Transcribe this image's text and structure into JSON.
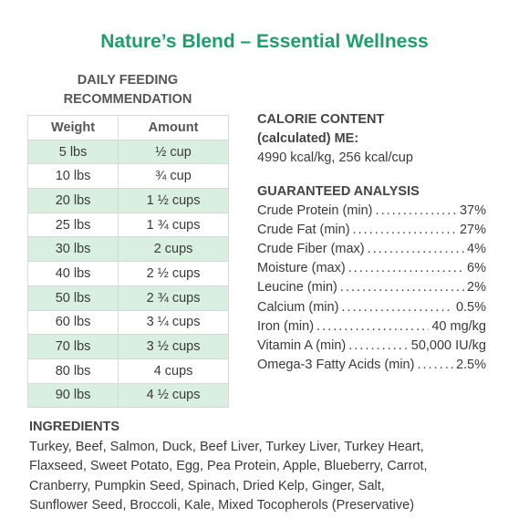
{
  "header": {
    "title": "Nature’s Blend – Essential Wellness"
  },
  "feeding": {
    "heading": [
      "DAILY FEEDING",
      "RECOMMENDATION"
    ],
    "columns": [
      "Weight",
      "Amount"
    ],
    "rows": [
      [
        "5 lbs",
        "½ cup"
      ],
      [
        "10 lbs",
        "¾ cup"
      ],
      [
        "20 lbs",
        "1 ½ cups"
      ],
      [
        "25 lbs",
        "1 ¾ cups"
      ],
      [
        "30 lbs",
        "2 cups"
      ],
      [
        "40 lbs",
        "2 ½ cups"
      ],
      [
        "50 lbs",
        "2 ¾ cups"
      ],
      [
        "60 lbs",
        "3 ¼ cups"
      ],
      [
        "70 lbs",
        "3 ½ cups"
      ],
      [
        "80 lbs",
        "4 cups"
      ],
      [
        "90 lbs",
        "4 ½ cups"
      ]
    ]
  },
  "calorie": {
    "heading": [
      "CALORIE CONTENT",
      "(calculated) ME:"
    ],
    "text": "4990 kcal/kg, 256 kcal/cup"
  },
  "analysis": {
    "heading": "GUARANTEED ANALYSIS",
    "rows": [
      [
        "Crude Protein (min)",
        "37%"
      ],
      [
        "Crude Fat (min)",
        "27%"
      ],
      [
        "Crude Fiber (max)",
        "4%"
      ],
      [
        "Moisture (max)",
        "6%"
      ],
      [
        "Leucine (min)",
        "2%"
      ],
      [
        "Calcium (min)",
        "0.5%"
      ],
      [
        "Iron (min)",
        "40 mg/kg"
      ],
      [
        "Vitamin A (min)",
        "50,000 IU/kg"
      ],
      [
        "Omega-3 Fatty Acids (min)",
        "2.5%"
      ]
    ]
  },
  "ingredients": {
    "heading": "INGREDIENTS",
    "lines": [
      "Turkey, Beef, Salmon, Duck, Beef Liver, Turkey Liver, Turkey Heart,",
      "Flaxseed, Sweet Potato, Egg, Pea Protein, Apple, Blueberry, Carrot,",
      "Cranberry, Pumpkin Seed, Spinach, Dried Kelp, Ginger, Salt,",
      "Sunflower Seed, Broccoli, Kale, Mixed Tocopherols (Preservative)"
    ]
  }
}
